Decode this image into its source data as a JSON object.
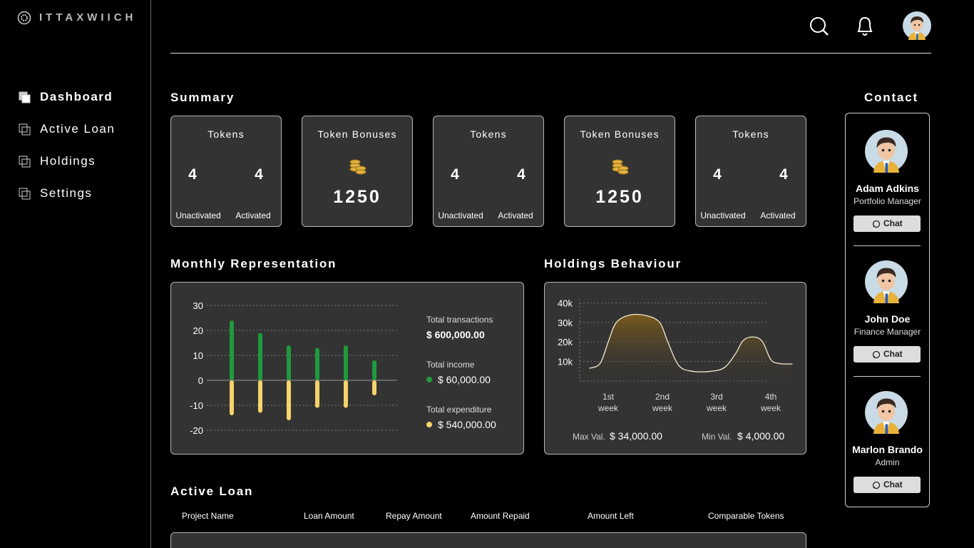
{
  "brand": "ITTAXWIICH",
  "nav": [
    {
      "label": "Dashboard",
      "active": true
    },
    {
      "label": "Active Loan",
      "active": false
    },
    {
      "label": "Holdings",
      "active": false
    },
    {
      "label": "Settings",
      "active": false
    }
  ],
  "summary": {
    "title": "Summary",
    "cards": [
      {
        "title": "Tokens",
        "unactivated": 4,
        "activated": 4,
        "labels": [
          "Unactivated",
          "Activated"
        ]
      },
      {
        "title": "Token Bonuses",
        "value": 1250
      },
      {
        "title": "Tokens",
        "unactivated": 4,
        "activated": 4,
        "labels": [
          "Unactivated",
          "Activated"
        ]
      },
      {
        "title": "Token Bonuses",
        "value": 1250
      },
      {
        "title": "Tokens",
        "unactivated": 4,
        "activated": 4,
        "labels": [
          "Unactivated",
          "Activated"
        ]
      }
    ]
  },
  "monthly": {
    "title": "Monthly Representation",
    "stats": [
      {
        "label": "Total transactions",
        "value": "$ 600,000.00"
      }
    ],
    "chart": {
      "type": "bar",
      "categories": [
        null,
        null,
        null,
        null,
        null,
        null
      ],
      "ylim": [
        -22,
        32
      ],
      "yticks": [
        30,
        20,
        10,
        0,
        -10,
        -20
      ],
      "grid": true,
      "series": [
        {
          "name": "Total income",
          "total": "$ 60,000.00",
          "color": "#1f9a3c",
          "values": [
            24,
            19,
            14,
            13,
            14,
            8
          ]
        },
        {
          "name": "Total expenditure",
          "total": "$ 540,000.00",
          "color": "#f7d36b",
          "values": [
            -14,
            -13,
            -16,
            -11,
            -11,
            -6
          ]
        }
      ]
    }
  },
  "holdings": {
    "title": "Holdings Behaviour",
    "max_label": "Max Val.",
    "max": "$ 34,000.00",
    "min_label": "Min Val.",
    "min": "$ 4,000.00",
    "chart": {
      "type": "line",
      "color": "#f3ead0",
      "grid": true,
      "x": [
        0.65,
        0.85,
        1.0,
        1.15,
        1.4,
        1.7,
        1.95,
        2.1,
        2.3,
        2.55,
        2.9,
        3.15,
        3.35,
        3.5,
        3.7,
        3.85,
        4.0,
        4.15,
        4.4
      ],
      "values": [
        6500,
        9000,
        20000,
        30000,
        33800,
        33500,
        30000,
        20000,
        8000,
        5000,
        5000,
        7000,
        14000,
        21000,
        22500,
        20000,
        11000,
        9000,
        8700
      ],
      "xlim": [
        0.45,
        4.45
      ],
      "xticks": [
        {
          "value": 1,
          "label": "1st week"
        },
        {
          "value": 2,
          "label": "2nd week"
        },
        {
          "value": 3,
          "label": "3rd week"
        },
        {
          "value": 4,
          "label": "4th week"
        }
      ],
      "ylim": [
        0,
        42000
      ],
      "yticks": [
        {
          "value": 10000,
          "label": "10k"
        },
        {
          "value": 20000,
          "label": "20k"
        },
        {
          "value": 30000,
          "label": "30k"
        },
        {
          "value": 40000,
          "label": "40k"
        }
      ]
    }
  },
  "contact": {
    "title": "Contact",
    "button": "Chat",
    "people": [
      {
        "name": "Adam Adkins",
        "role": "Portfolio Manager"
      },
      {
        "name": "John Doe",
        "role": "Finance Manager"
      },
      {
        "name": "Marlon Brando",
        "role": "Admin"
      }
    ]
  },
  "loans": {
    "title": "Active Loan",
    "columns": [
      "Project Name",
      "Loan Amount",
      "Repay Amount",
      "Amount Repaid",
      "Amount Left",
      "Comparable Tokens"
    ]
  }
}
